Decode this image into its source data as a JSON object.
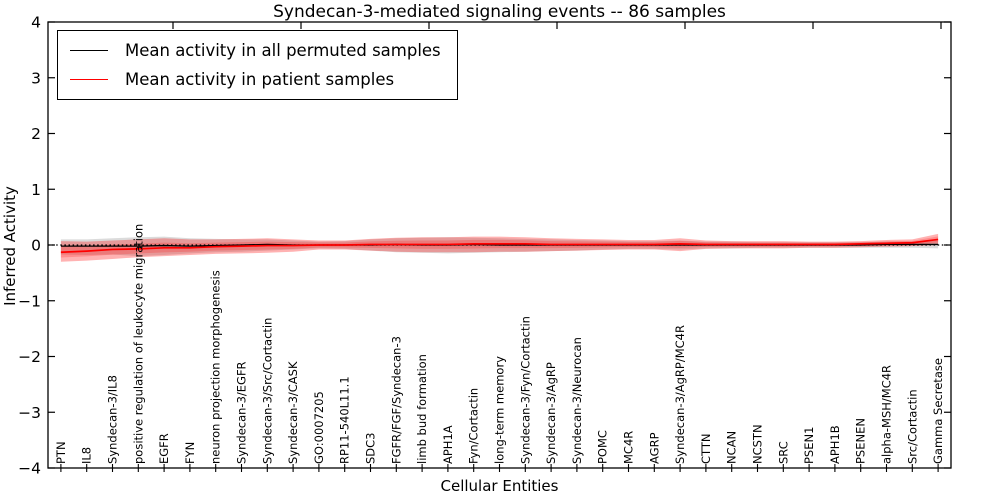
{
  "chart_data": {
    "type": "line",
    "title": "Syndecan-3-mediated signaling events -- 86 samples",
    "xlabel": "Cellular Entities",
    "ylabel": "Inferred Activity",
    "ylim": [
      -4,
      4
    ],
    "ytick_values": [
      4,
      3,
      2,
      1,
      0,
      -1,
      -2,
      -3,
      -4
    ],
    "ytick_labels": [
      "4",
      "3",
      "2",
      "1",
      "0",
      "−1",
      "−2",
      "−3",
      "−4"
    ],
    "grid": false,
    "legend_position": "upper left",
    "zero_line": true,
    "categories": [
      "PTN",
      "IL8",
      "Syndecan-3/IL8",
      "positive regulation of leukocyte migration",
      "EGFR",
      "FYN",
      "neuron projection morphogenesis",
      "Syndecan-3/EGFR",
      "Syndecan-3/Src/Cortactin",
      "Syndecan-3/CASK",
      "GO:0007205",
      "RP11-540L11.1",
      "SDC3",
      "FGFR/FGF/Syndecan-3",
      "limb bud formation",
      "APH1A",
      "Fyn/Cortactin",
      "long-term memory",
      "Syndecan-3/Fyn/Cortactin",
      "Syndecan-3/AgRP",
      "Syndecan-3/Neurocan",
      "POMC",
      "MC4R",
      "AGRP",
      "Syndecan-3/AgRP/MC4R",
      "CTTN",
      "NCAN",
      "NCSTN",
      "SRC",
      "PSEN1",
      "APH1B",
      "PSENEN",
      "alpha-MSH/MC4R",
      "Src/Cortactin",
      "Gamma Secretase"
    ],
    "series": [
      {
        "name": "Mean activity in all permuted samples",
        "color": "#000000",
        "band_color": "#000000",
        "band_opacity": 0.14,
        "values": [
          -0.02,
          -0.02,
          -0.02,
          -0.02,
          -0.01,
          -0.02,
          -0.01,
          0.0,
          0.01,
          0.0,
          0.0,
          0.0,
          0.0,
          0.01,
          0.0,
          0.0,
          0.01,
          0.0,
          0.0,
          0.0,
          0.0,
          0.0,
          0.0,
          0.0,
          0.0,
          0.0,
          0.0,
          0.0,
          0.0,
          0.0,
          0.0,
          0.0,
          0.01,
          0.01,
          0.01
        ],
        "band_hi": [
          0.1,
          0.1,
          0.12,
          0.14,
          0.15,
          0.12,
          0.11,
          0.1,
          0.1,
          0.08,
          0.06,
          0.07,
          0.1,
          0.12,
          0.13,
          0.14,
          0.13,
          0.12,
          0.11,
          0.1,
          0.09,
          0.08,
          0.07,
          0.07,
          0.08,
          0.06,
          0.06,
          0.05,
          0.05,
          0.05,
          0.05,
          0.05,
          0.06,
          0.06,
          0.08
        ],
        "band_lo": [
          -0.17,
          -0.18,
          -0.17,
          -0.2,
          -0.18,
          -0.15,
          -0.13,
          -0.12,
          -0.1,
          -0.08,
          -0.06,
          -0.07,
          -0.1,
          -0.13,
          -0.14,
          -0.15,
          -0.14,
          -0.13,
          -0.12,
          -0.11,
          -0.1,
          -0.08,
          -0.07,
          -0.07,
          -0.08,
          -0.06,
          -0.06,
          -0.05,
          -0.05,
          -0.05,
          -0.05,
          -0.05,
          -0.05,
          -0.05,
          -0.06
        ]
      },
      {
        "name": "Mean activity in patient samples",
        "color": "#ff0000",
        "band_color": "#ff0000",
        "band_opacity": 0.3,
        "values": [
          -0.13,
          -0.11,
          -0.08,
          -0.07,
          -0.05,
          -0.05,
          -0.03,
          -0.02,
          -0.01,
          -0.01,
          0.0,
          0.0,
          0.01,
          0.01,
          0.01,
          0.01,
          0.02,
          0.02,
          0.02,
          0.01,
          0.01,
          0.01,
          0.01,
          0.01,
          0.02,
          0.01,
          0.01,
          0.01,
          0.01,
          0.01,
          0.01,
          0.02,
          0.03,
          0.04,
          0.1
        ],
        "band_hi": [
          0.07,
          0.06,
          0.08,
          0.1,
          0.12,
          0.1,
          0.1,
          0.11,
          0.12,
          0.1,
          0.08,
          0.08,
          0.11,
          0.13,
          0.14,
          0.14,
          0.15,
          0.15,
          0.14,
          0.12,
          0.11,
          0.1,
          0.09,
          0.09,
          0.12,
          0.08,
          0.07,
          0.07,
          0.07,
          0.06,
          0.06,
          0.07,
          0.09,
          0.1,
          0.2
        ],
        "band_lo": [
          -0.3,
          -0.28,
          -0.25,
          -0.22,
          -0.2,
          -0.18,
          -0.16,
          -0.15,
          -0.14,
          -0.12,
          -0.08,
          -0.08,
          -0.1,
          -0.12,
          -0.13,
          -0.13,
          -0.13,
          -0.12,
          -0.12,
          -0.11,
          -0.1,
          -0.09,
          -0.08,
          -0.08,
          -0.11,
          -0.07,
          -0.06,
          -0.06,
          -0.06,
          -0.05,
          -0.05,
          -0.04,
          -0.03,
          -0.02,
          0.0
        ]
      }
    ]
  },
  "legend": {
    "items": [
      {
        "label": "Mean activity in all permuted samples",
        "color": "#000000"
      },
      {
        "label": "Mean activity in patient samples",
        "color": "#ff0000"
      }
    ]
  }
}
